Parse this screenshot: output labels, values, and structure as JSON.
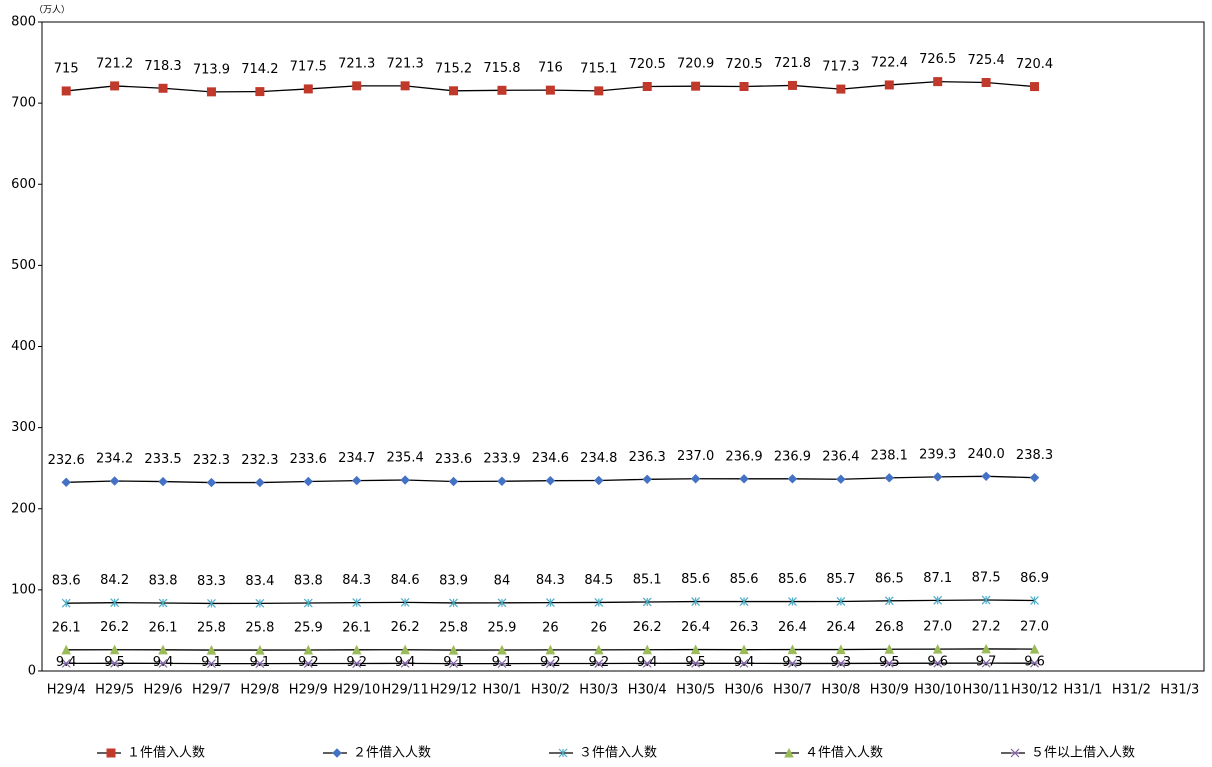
{
  "chart_data": {
    "type": "line",
    "unit_label": "（万人）",
    "categories": [
      "H29/4",
      "H29/5",
      "H29/6",
      "H29/7",
      "H29/8",
      "H29/9",
      "H29/10",
      "H29/11",
      "H29/12",
      "H30/1",
      "H30/2",
      "H30/3",
      "H30/4",
      "H30/5",
      "H30/6",
      "H30/7",
      "H30/8",
      "H30/9",
      "H30/10",
      "H30/11",
      "H30/12",
      "H31/1",
      "H31/2",
      "H31/3"
    ],
    "ylim": [
      0,
      800
    ],
    "yticks": [
      0,
      100,
      200,
      300,
      400,
      500,
      600,
      700,
      800
    ],
    "line_color": "#000000",
    "series": [
      {
        "name": "１件借入人数",
        "color": "#c0392b",
        "marker": "square",
        "values": [
          715,
          721.2,
          718.3,
          713.9,
          714.2,
          717.5,
          721.3,
          721.3,
          715.2,
          715.8,
          716,
          715.1,
          720.5,
          720.9,
          720.5,
          721.8,
          717.3,
          722.4,
          726.5,
          725.4,
          720.4,
          null,
          null,
          null
        ],
        "value_labels": [
          "715",
          "721.2",
          "718.3",
          "713.9",
          "714.2",
          "717.5",
          "721.3",
          "721.3",
          "715.2",
          "715.8",
          "716",
          "715.1",
          "720.5",
          "720.9",
          "720.5",
          "721.8",
          "717.3",
          "722.4",
          "726.5",
          "725.4",
          "720.4",
          null,
          null,
          null
        ]
      },
      {
        "name": "２件借入人数",
        "color": "#4472c4",
        "marker": "diamond",
        "values": [
          232.6,
          234.2,
          233.5,
          232.3,
          232.3,
          233.6,
          234.7,
          235.4,
          233.6,
          233.9,
          234.6,
          234.8,
          236.3,
          237.0,
          236.9,
          236.9,
          236.4,
          238.1,
          239.3,
          240.0,
          238.3,
          null,
          null,
          null
        ],
        "value_labels": [
          "232.6",
          "234.2",
          "233.5",
          "232.3",
          "232.3",
          "233.6",
          "234.7",
          "235.4",
          "233.6",
          "233.9",
          "234.6",
          "234.8",
          "236.3",
          "237.0",
          "236.9",
          "236.9",
          "236.4",
          "238.1",
          "239.3",
          "240.0",
          "238.3",
          null,
          null,
          null
        ]
      },
      {
        "name": "３件借入人数",
        "color": "#4bacc6",
        "marker": "star",
        "values": [
          83.6,
          84.2,
          83.8,
          83.3,
          83.4,
          83.8,
          84.3,
          84.6,
          83.9,
          84,
          84.3,
          84.5,
          85.1,
          85.6,
          85.6,
          85.6,
          85.7,
          86.5,
          87.1,
          87.5,
          86.9,
          null,
          null,
          null
        ],
        "value_labels": [
          "83.6",
          "84.2",
          "83.8",
          "83.3",
          "83.4",
          "83.8",
          "84.3",
          "84.6",
          "83.9",
          "84",
          "84.3",
          "84.5",
          "85.1",
          "85.6",
          "85.6",
          "85.6",
          "85.7",
          "86.5",
          "87.1",
          "87.5",
          "86.9",
          null,
          null,
          null
        ]
      },
      {
        "name": "４件借入人数",
        "color": "#9bbb59",
        "marker": "triangle",
        "values": [
          26.1,
          26.2,
          26.1,
          25.8,
          25.8,
          25.9,
          26.1,
          26.2,
          25.8,
          25.9,
          26,
          26,
          26.2,
          26.4,
          26.3,
          26.4,
          26.4,
          26.8,
          27.0,
          27.2,
          27.0,
          null,
          null,
          null
        ],
        "value_labels": [
          "26.1",
          "26.2",
          "26.1",
          "25.8",
          "25.8",
          "25.9",
          "26.1",
          "26.2",
          "25.8",
          "25.9",
          "26",
          "26",
          "26.2",
          "26.4",
          "26.3",
          "26.4",
          "26.4",
          "26.8",
          "27.0",
          "27.2",
          "27.0",
          null,
          null,
          null
        ]
      },
      {
        "name": "５件以上借入人数",
        "color": "#8064a2",
        "marker": "cross",
        "values": [
          9.4,
          9.5,
          9.4,
          9.1,
          9.1,
          9.2,
          9.2,
          9.4,
          9.1,
          9.1,
          9.2,
          9.2,
          9.4,
          9.5,
          9.4,
          9.3,
          9.3,
          9.5,
          9.6,
          9.7,
          9.6,
          null,
          null,
          null
        ],
        "value_labels": [
          "9.4",
          "9.5",
          "9.4",
          "9.1",
          "9.1",
          "9.2",
          "9.2",
          "9.4",
          "9.1",
          "9.1",
          "9.2",
          "9.2",
          "9.4",
          "9.5",
          "9.4",
          "9.3",
          "9.3",
          "9.5",
          "9.6",
          "9.7",
          "9.6",
          null,
          null,
          null
        ]
      }
    ]
  }
}
